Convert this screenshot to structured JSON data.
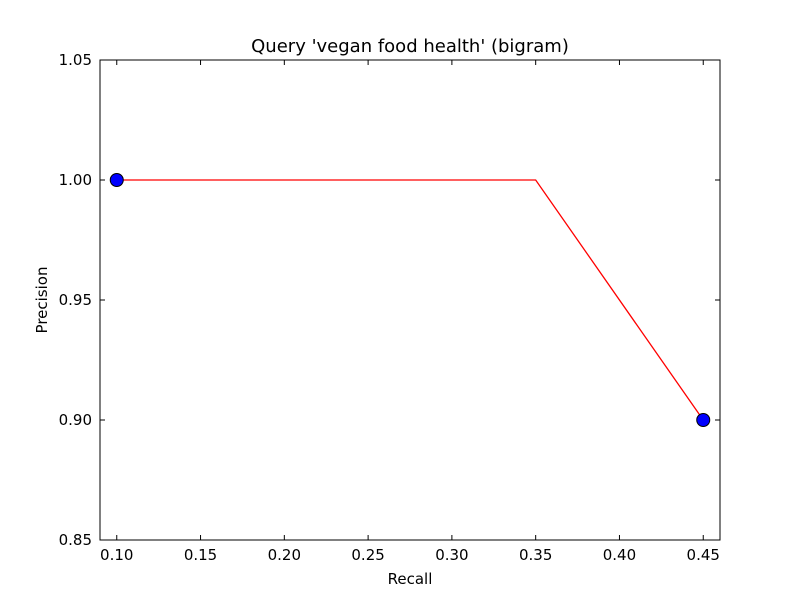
{
  "chart_data": {
    "type": "line",
    "title": "Query 'vegan food health' (bigram)",
    "xlabel": "Recall",
    "ylabel": "Precision",
    "xlim": [
      0.09,
      0.46
    ],
    "ylim": [
      0.85,
      1.05
    ],
    "x_ticks": [
      0.1,
      0.15,
      0.2,
      0.25,
      0.3,
      0.35,
      0.4,
      0.45
    ],
    "y_ticks": [
      0.85,
      0.9,
      0.95,
      1.0,
      1.05
    ],
    "x_tick_labels": [
      "0.10",
      "0.15",
      "0.20",
      "0.25",
      "0.30",
      "0.35",
      "0.40",
      "0.45"
    ],
    "y_tick_labels": [
      "0.85",
      "0.90",
      "0.95",
      "1.00",
      "1.05"
    ],
    "grid": false,
    "series": [
      {
        "kind": "line",
        "color": "#ff0000",
        "x": [
          0.1,
          0.35,
          0.45
        ],
        "y": [
          1.0,
          1.0,
          0.9
        ]
      },
      {
        "kind": "markers",
        "color": "#0000ff",
        "x": [
          0.1,
          0.45
        ],
        "y": [
          1.0,
          0.9
        ]
      }
    ]
  }
}
